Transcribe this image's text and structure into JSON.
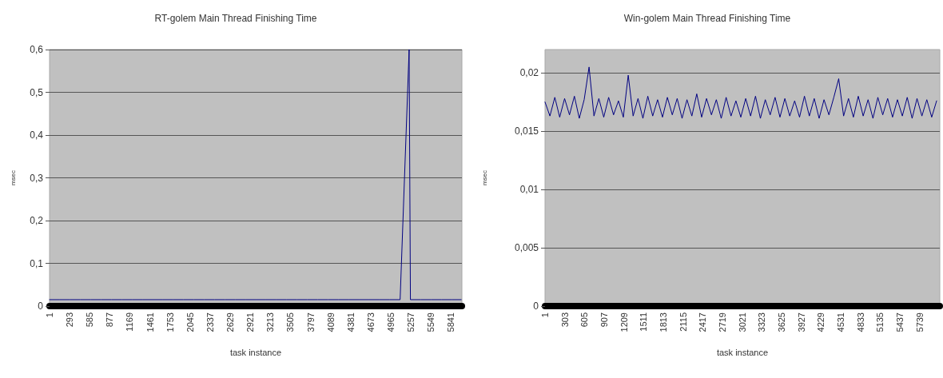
{
  "chart_data": [
    {
      "type": "line",
      "title": "RT-golem Main Thread Finishing Time",
      "xlabel": "task instance",
      "ylabel": "msec",
      "grid": "y",
      "marker": "none",
      "xlim": [
        1,
        6000
      ],
      "xticks": [
        1,
        293,
        585,
        877,
        1169,
        1461,
        1753,
        2045,
        2337,
        2629,
        2921,
        3213,
        3505,
        3797,
        4089,
        4381,
        4673,
        4965,
        5257,
        5549,
        5841
      ],
      "ylim": [
        0,
        0.6
      ],
      "yticks": [
        0,
        {
          "value": 0.1,
          "label": "0,1"
        },
        {
          "value": 0.2,
          "label": "0,2"
        },
        {
          "value": 0.3,
          "label": "0,3"
        },
        {
          "value": 0.4,
          "label": "0,4"
        },
        {
          "value": 0.5,
          "label": "0,5"
        },
        {
          "value": 0.6,
          "label": "0,6"
        }
      ],
      "x": [
        1,
        151,
        301,
        451,
        601,
        751,
        901,
        1051,
        1201,
        1351,
        1501,
        1651,
        1801,
        1951,
        2101,
        2251,
        2401,
        2551,
        2701,
        2851,
        3001,
        3151,
        3301,
        3451,
        3601,
        3751,
        3901,
        4051,
        4201,
        4351,
        4501,
        4651,
        4801,
        4951,
        5101,
        5232,
        5251,
        5401,
        5551,
        5701,
        5851,
        5990
      ],
      "series": [
        {
          "color": "#000080",
          "values": [
            0.015,
            0.015,
            0.015,
            0.015,
            0.015,
            0.015,
            0.015,
            0.015,
            0.015,
            0.015,
            0.015,
            0.015,
            0.015,
            0.015,
            0.015,
            0.015,
            0.015,
            0.015,
            0.015,
            0.015,
            0.015,
            0.015,
            0.015,
            0.015,
            0.015,
            0.015,
            0.015,
            0.015,
            0.015,
            0.015,
            0.015,
            0.015,
            0.015,
            0.015,
            0.015,
            0.6,
            0.015,
            0.015,
            0.015,
            0.015,
            0.015,
            0.015
          ]
        }
      ]
    },
    {
      "type": "line",
      "title": "Win-golem Main Thread Finishing Time",
      "xlabel": "task instance",
      "ylabel": "msec",
      "grid": "y",
      "marker": "none",
      "xlim": [
        1,
        6050
      ],
      "xticks": [
        1,
        303,
        605,
        907,
        1209,
        1511,
        1813,
        2115,
        2417,
        2719,
        3021,
        3323,
        3625,
        3927,
        4229,
        4531,
        4833,
        5135,
        5437,
        5739
      ],
      "ylim": [
        0,
        0.022
      ],
      "yticks": [
        0,
        {
          "value": 0.005,
          "label": "0,005"
        },
        {
          "value": 0.01,
          "label": "0,01"
        },
        {
          "value": 0.015,
          "label": "0,015"
        },
        {
          "value": 0.02,
          "label": "0,02"
        }
      ],
      "x": [
        1,
        76,
        151,
        226,
        301,
        376,
        451,
        526,
        601,
        676,
        751,
        826,
        901,
        976,
        1051,
        1126,
        1201,
        1276,
        1351,
        1426,
        1501,
        1576,
        1651,
        1726,
        1801,
        1876,
        1951,
        2026,
        2101,
        2176,
        2251,
        2326,
        2401,
        2476,
        2551,
        2626,
        2701,
        2776,
        2851,
        2926,
        3001,
        3076,
        3151,
        3226,
        3301,
        3376,
        3451,
        3526,
        3601,
        3676,
        3751,
        3826,
        3901,
        3976,
        4051,
        4126,
        4201,
        4276,
        4351,
        4426,
        4501,
        4576,
        4651,
        4726,
        4801,
        4876,
        4951,
        5026,
        5101,
        5176,
        5251,
        5326,
        5401,
        5476,
        5551,
        5626,
        5701,
        5776,
        5851,
        5926,
        6001
      ],
      "series": [
        {
          "color": "#000080",
          "values": [
            0.0175,
            0.0163,
            0.0179,
            0.0162,
            0.0178,
            0.0164,
            0.018,
            0.0161,
            0.0177,
            0.0205,
            0.0163,
            0.0178,
            0.0162,
            0.0179,
            0.0164,
            0.0176,
            0.0162,
            0.0198,
            0.0163,
            0.0178,
            0.0161,
            0.018,
            0.0163,
            0.0177,
            0.0162,
            0.0179,
            0.0164,
            0.0178,
            0.0161,
            0.0177,
            0.0163,
            0.0182,
            0.0162,
            0.0178,
            0.0164,
            0.0177,
            0.0161,
            0.0179,
            0.0163,
            0.0176,
            0.0162,
            0.0178,
            0.0163,
            0.018,
            0.0161,
            0.0177,
            0.0164,
            0.0179,
            0.0162,
            0.0178,
            0.0163,
            0.0176,
            0.0162,
            0.018,
            0.0163,
            0.0178,
            0.0161,
            0.0177,
            0.0164,
            0.0179,
            0.0195,
            0.0163,
            0.0178,
            0.0162,
            0.018,
            0.0163,
            0.0177,
            0.0161,
            0.0179,
            0.0164,
            0.0178,
            0.0162,
            0.0177,
            0.0163,
            0.0179,
            0.0161,
            0.0178,
            0.0163,
            0.0177,
            0.0162,
            0.0176
          ]
        }
      ]
    }
  ]
}
